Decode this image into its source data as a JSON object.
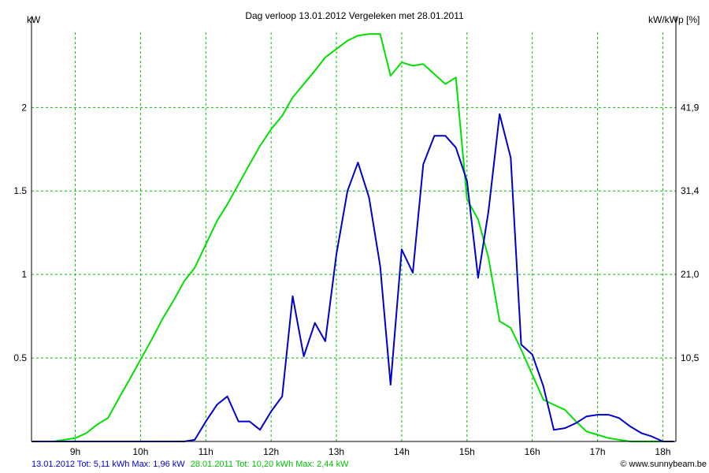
{
  "chart_data": {
    "type": "line",
    "title": "Dag  verloop 13.01.2012   Vergeleken met 28.01.2011",
    "ylabel_left": "kW",
    "ylabel_right": "kW/kWp [%]",
    "xlabel": "",
    "x_tick_labels": [
      "9h",
      "10h",
      "11h",
      "12h",
      "13h",
      "14h",
      "15h",
      "16h",
      "17h",
      "18h"
    ],
    "x_tick_values": [
      9,
      10,
      11,
      12,
      13,
      14,
      15,
      16,
      17,
      18
    ],
    "xlim": [
      8.33,
      18.2
    ],
    "ylim": [
      0,
      2.45
    ],
    "y_ticks_left": [
      0.5,
      1,
      1.5,
      2
    ],
    "y_tick_labels_left": [
      "0.5",
      "1",
      "1.5",
      "2"
    ],
    "y_ticks_right_positions": [
      0.5,
      1,
      1.5,
      2
    ],
    "y_tick_labels_right": [
      "10,5",
      "21,0",
      "31,4",
      "41,9"
    ],
    "grid": true,
    "series": [
      {
        "name": "28.01.2011",
        "color": "#00e000",
        "x": [
          8.33,
          8.5,
          8.67,
          8.83,
          9.0,
          9.17,
          9.33,
          9.5,
          9.67,
          9.83,
          10.0,
          10.17,
          10.33,
          10.5,
          10.67,
          10.83,
          11.0,
          11.17,
          11.33,
          11.5,
          11.67,
          11.83,
          12.0,
          12.17,
          12.33,
          12.5,
          12.67,
          12.83,
          13.0,
          13.17,
          13.33,
          13.5,
          13.67,
          13.83,
          14.0,
          14.17,
          14.33,
          14.5,
          14.67,
          14.83,
          15.0,
          15.17,
          15.33,
          15.5,
          15.67,
          15.83,
          16.0,
          16.17,
          16.33,
          16.5,
          16.67,
          16.83,
          17.0,
          17.17,
          17.33,
          17.5,
          17.67,
          17.83,
          18.0,
          18.17
        ],
        "y": [
          0,
          0,
          0,
          0.01,
          0.02,
          0.05,
          0.1,
          0.14,
          0.26,
          0.37,
          0.49,
          0.61,
          0.73,
          0.84,
          0.96,
          1.04,
          1.18,
          1.32,
          1.42,
          1.54,
          1.66,
          1.77,
          1.87,
          1.95,
          2.06,
          2.14,
          2.22,
          2.3,
          2.35,
          2.4,
          2.43,
          2.44,
          2.44,
          2.19,
          2.27,
          2.25,
          2.26,
          2.2,
          2.14,
          2.18,
          1.45,
          1.33,
          1.1,
          0.72,
          0.68,
          0.55,
          0.4,
          0.25,
          0.22,
          0.19,
          0.12,
          0.06,
          0.04,
          0.02,
          0.01,
          0,
          0,
          0,
          0,
          0
        ]
      },
      {
        "name": "13.01.2012",
        "color": "#0000cc",
        "x": [
          8.33,
          8.5,
          8.67,
          8.83,
          9.0,
          9.17,
          9.33,
          9.5,
          9.67,
          9.83,
          10.0,
          10.17,
          10.33,
          10.5,
          10.67,
          10.83,
          11.0,
          11.17,
          11.33,
          11.5,
          11.67,
          11.83,
          12.0,
          12.17,
          12.33,
          12.5,
          12.67,
          12.83,
          13.0,
          13.17,
          13.33,
          13.5,
          13.67,
          13.83,
          14.0,
          14.17,
          14.33,
          14.5,
          14.67,
          14.83,
          15.0,
          15.17,
          15.33,
          15.5,
          15.67,
          15.83,
          16.0,
          16.17,
          16.33,
          16.5,
          16.67,
          16.83,
          17.0,
          17.17,
          17.33,
          17.5,
          17.67,
          17.83,
          18.0,
          18.17
        ],
        "y": [
          0,
          0,
          0,
          0,
          0,
          0,
          0,
          0,
          0,
          0,
          0,
          0,
          0,
          0,
          0,
          0.01,
          0.12,
          0.22,
          0.27,
          0.12,
          0.12,
          0.07,
          0.18,
          0.27,
          0.87,
          0.51,
          0.71,
          0.6,
          1.12,
          1.5,
          1.67,
          1.46,
          1.05,
          0.34,
          1.15,
          1.01,
          1.66,
          1.83,
          1.83,
          1.76,
          1.56,
          0.98,
          1.38,
          1.96,
          1.7,
          0.58,
          0.52,
          0.33,
          0.07,
          0.08,
          0.11,
          0.15,
          0.16,
          0.16,
          0.14,
          0.09,
          0.05,
          0.03,
          0,
          0
        ]
      }
    ]
  },
  "footer": {
    "series1_label": "13.01.2012 Tot: 5,11 kWh Max: 1,96 kW",
    "series1_color": "#0000cc",
    "series2_label": "28.01.2011 Tot: 10,20 kWh Max: 2,44 kW",
    "series2_color": "#00c000",
    "credit": "© www.sunnybeam.be"
  }
}
